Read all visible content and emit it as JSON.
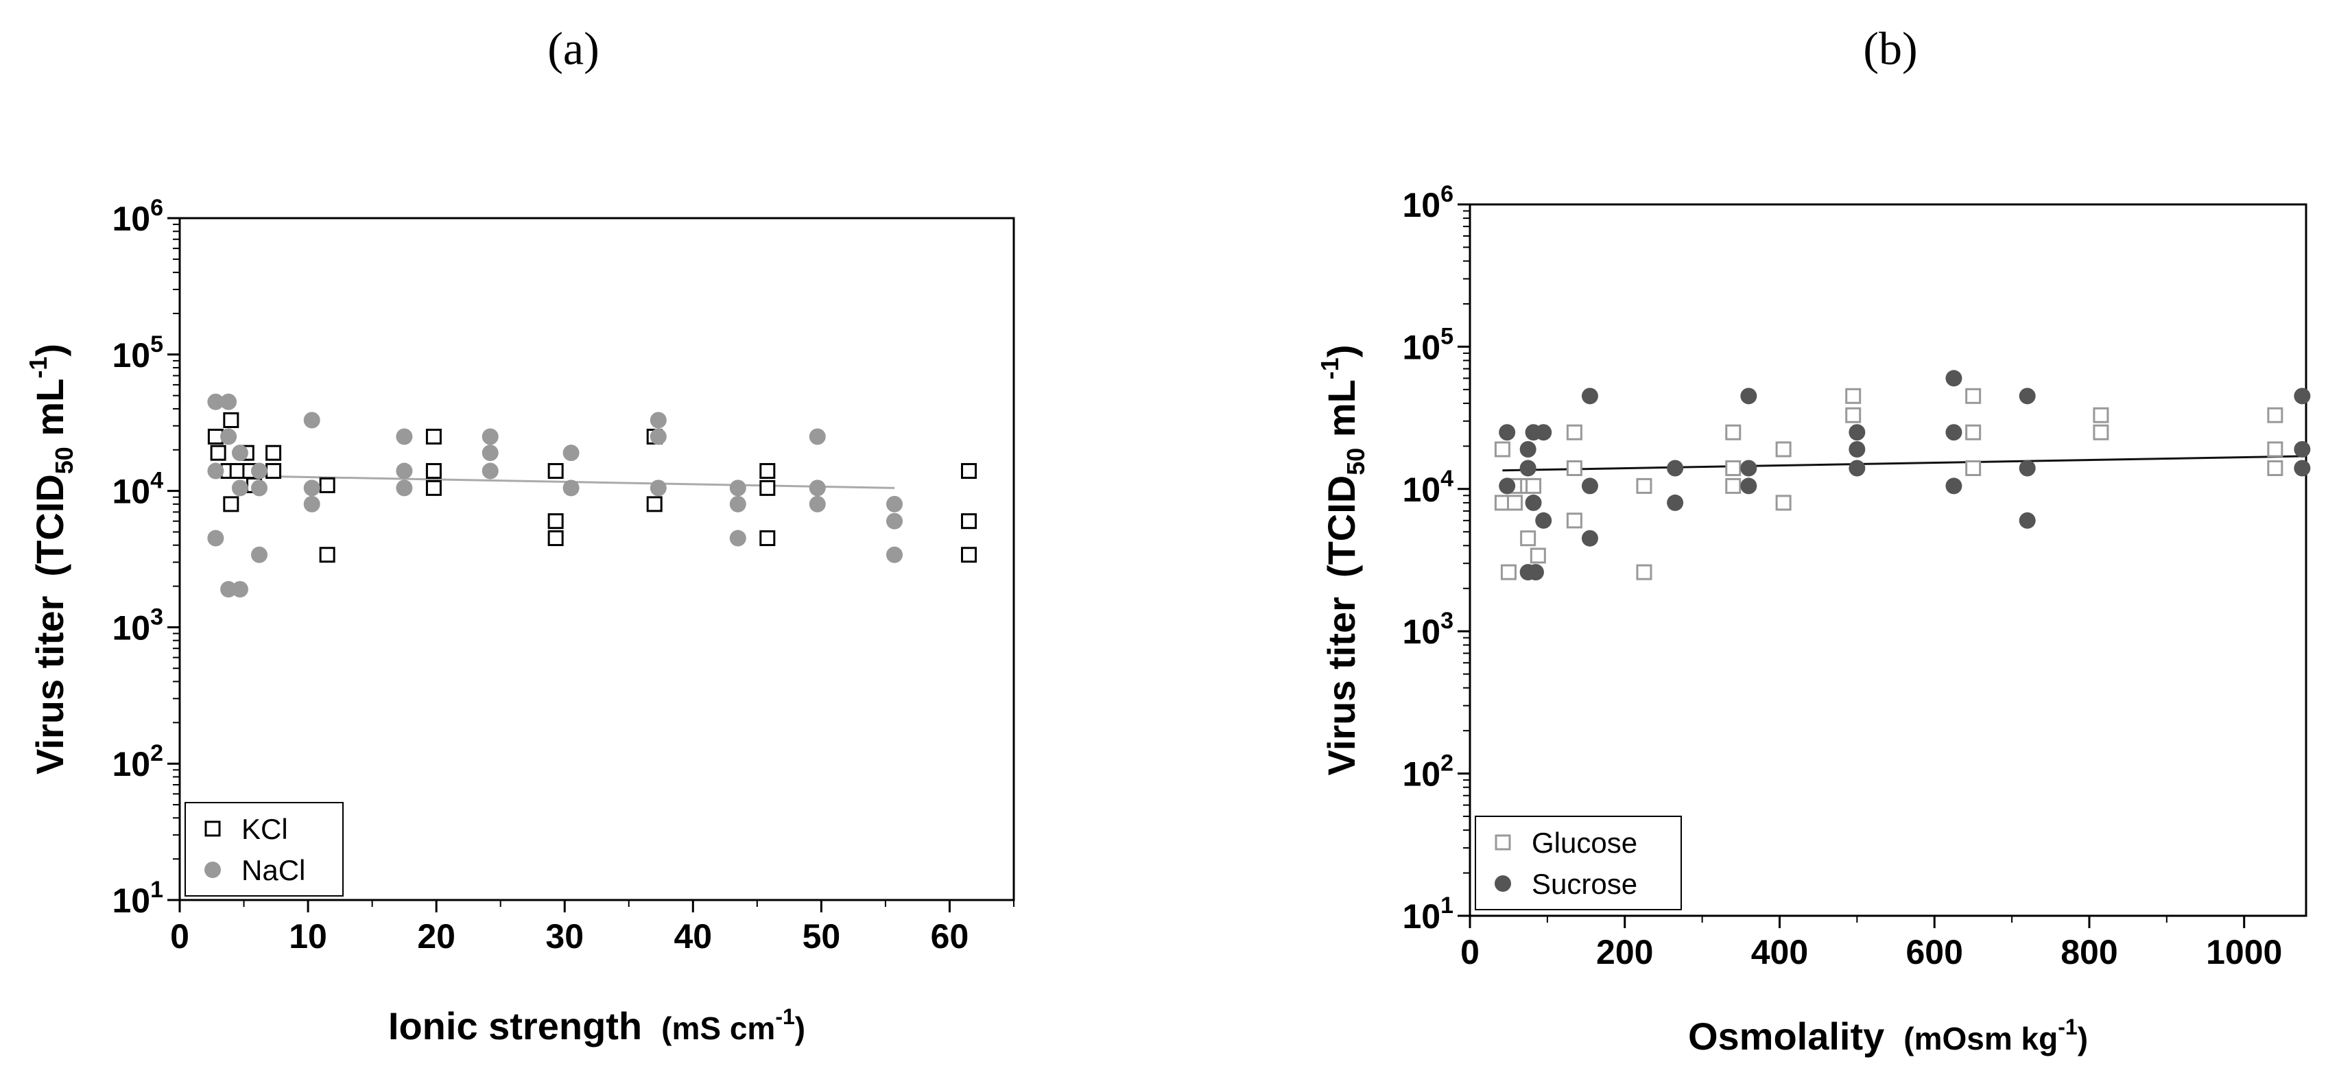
{
  "chart_data": [
    {
      "type": "scatter",
      "panel_label": "(a)",
      "panel_letter": "a",
      "xlabel": "Ionic strength",
      "xlabel_units": "(mS cm",
      "xlabel_units_sup": "-1",
      "xlabel_units_close": ")",
      "ylabel": "Virus titer",
      "ylabel_units_open": "(TCID",
      "ylabel_units_sub": "50",
      "ylabel_units_mid": " mL",
      "ylabel_units_sup": "-1",
      "ylabel_units_close": ")",
      "yscale": "log",
      "xlim": [
        0,
        65
      ],
      "ylim": [
        10,
        1000000
      ],
      "xticks": [
        0,
        10,
        20,
        30,
        40,
        50,
        60
      ],
      "xtick_labels": [
        "0",
        "10",
        "20",
        "30",
        "40",
        "50",
        "60"
      ],
      "yticks": [
        10,
        100,
        1000,
        10000,
        100000,
        1000000
      ],
      "ytick_base": "10",
      "ytick_exponents": [
        "1",
        "2",
        "3",
        "4",
        "5",
        "6"
      ],
      "legend_position": "bottom-left",
      "series": [
        {
          "name": "KCl",
          "marker": "open-square",
          "color": "#000000",
          "points": [
            [
              2.8,
              25000
            ],
            [
              3.0,
              19000
            ],
            [
              3.8,
              14000
            ],
            [
              4.0,
              33000
            ],
            [
              4.0,
              8000
            ],
            [
              4.5,
              14000
            ],
            [
              5.2,
              19000
            ],
            [
              5.5,
              14000
            ],
            [
              5.8,
              11000
            ],
            [
              7.3,
              19000
            ],
            [
              7.3,
              14000
            ],
            [
              11.5,
              11000
            ],
            [
              11.5,
              3400
            ],
            [
              19.8,
              25000
            ],
            [
              19.8,
              14000
            ],
            [
              19.8,
              10500
            ],
            [
              29.3,
              14000
            ],
            [
              29.3,
              6000
            ],
            [
              29.3,
              4500
            ],
            [
              37.0,
              25000
            ],
            [
              37.0,
              8000
            ],
            [
              45.8,
              14000
            ],
            [
              45.8,
              10500
            ],
            [
              45.8,
              4500
            ],
            [
              61.5,
              14000
            ],
            [
              61.5,
              6000
            ],
            [
              61.5,
              3400
            ]
          ]
        },
        {
          "name": "NaCl",
          "marker": "filled-circle",
          "color": "#999999",
          "points": [
            [
              2.8,
              45000
            ],
            [
              3.8,
              45000
            ],
            [
              3.8,
              25000
            ],
            [
              2.8,
              14000
            ],
            [
              2.8,
              4500
            ],
            [
              3.8,
              1900
            ],
            [
              4.7,
              1900
            ],
            [
              4.7,
              19000
            ],
            [
              4.7,
              10500
            ],
            [
              6.2,
              14000
            ],
            [
              6.2,
              10500
            ],
            [
              6.2,
              3400
            ],
            [
              10.3,
              33000
            ],
            [
              10.3,
              10500
            ],
            [
              10.3,
              8000
            ],
            [
              17.5,
              25000
            ],
            [
              17.5,
              14000
            ],
            [
              17.5,
              10500
            ],
            [
              24.2,
              25000
            ],
            [
              24.2,
              19000
            ],
            [
              24.2,
              14000
            ],
            [
              30.5,
              19000
            ],
            [
              30.5,
              10500
            ],
            [
              37.3,
              33000
            ],
            [
              37.3,
              25000
            ],
            [
              37.3,
              10500
            ],
            [
              43.5,
              10500
            ],
            [
              43.5,
              8000
            ],
            [
              43.5,
              4500
            ],
            [
              49.7,
              25000
            ],
            [
              49.7,
              10500
            ],
            [
              49.7,
              8000
            ],
            [
              55.7,
              8000
            ],
            [
              55.7,
              6000
            ],
            [
              55.7,
              3400
            ]
          ]
        }
      ],
      "trendline": {
        "color": "#aaaaaa",
        "from": [
          2.8,
          13000
        ],
        "to": [
          55.7,
          10500
        ]
      }
    },
    {
      "type": "scatter",
      "panel_label": "(b)",
      "panel_letter": "b",
      "xlabel": "Osmolality",
      "xlabel_units": "(mOsm kg",
      "xlabel_units_sup": "-1",
      "xlabel_units_close": ")",
      "ylabel": "Virus titer",
      "ylabel_units_open": "(TCID",
      "ylabel_units_sub": "50",
      "ylabel_units_mid": " mL",
      "ylabel_units_sup": "-1",
      "ylabel_units_close": ")",
      "yscale": "log",
      "xlim": [
        0,
        1080
      ],
      "ylim": [
        10,
        1000000
      ],
      "xticks": [
        0,
        200,
        400,
        600,
        800,
        1000
      ],
      "xtick_labels": [
        "0",
        "200",
        "400",
        "600",
        "800",
        "1000"
      ],
      "yticks": [
        10,
        100,
        1000,
        10000,
        100000,
        1000000
      ],
      "ytick_base": "10",
      "ytick_exponents": [
        "1",
        "2",
        "3",
        "4",
        "5",
        "6"
      ],
      "legend_position": "bottom-left",
      "series": [
        {
          "name": "Glucose",
          "marker": "open-square",
          "color": "#999999",
          "points": [
            [
              42,
              19000
            ],
            [
              42,
              8000
            ],
            [
              58,
              10500
            ],
            [
              58,
              8000
            ],
            [
              50,
              2600
            ],
            [
              75,
              10500
            ],
            [
              75,
              4500
            ],
            [
              82,
              10500
            ],
            [
              88,
              3400
            ],
            [
              135,
              25000
            ],
            [
              135,
              14000
            ],
            [
              135,
              6000
            ],
            [
              225,
              10500
            ],
            [
              225,
              2600
            ],
            [
              340,
              25000
            ],
            [
              340,
              14000
            ],
            [
              340,
              10500
            ],
            [
              405,
              19000
            ],
            [
              405,
              8000
            ],
            [
              495,
              45000
            ],
            [
              495,
              33000
            ],
            [
              650,
              45000
            ],
            [
              650,
              25000
            ],
            [
              650,
              14000
            ],
            [
              815,
              33000
            ],
            [
              815,
              25000
            ],
            [
              1040,
              33000
            ],
            [
              1040,
              19000
            ],
            [
              1040,
              14000
            ]
          ]
        },
        {
          "name": "Sucrose",
          "marker": "filled-circle",
          "color": "#555555",
          "points": [
            [
              48,
              25000
            ],
            [
              48,
              10500
            ],
            [
              75,
              19000
            ],
            [
              75,
              14000
            ],
            [
              75,
              2600
            ],
            [
              82,
              25000
            ],
            [
              82,
              8000
            ],
            [
              85,
              2600
            ],
            [
              95,
              25000
            ],
            [
              95,
              6000
            ],
            [
              155,
              45000
            ],
            [
              155,
              10500
            ],
            [
              155,
              4500
            ],
            [
              265,
              14000
            ],
            [
              265,
              8000
            ],
            [
              360,
              45000
            ],
            [
              360,
              14000
            ],
            [
              360,
              10500
            ],
            [
              500,
              25000
            ],
            [
              500,
              19000
            ],
            [
              500,
              14000
            ],
            [
              625,
              60000
            ],
            [
              625,
              25000
            ],
            [
              625,
              10500
            ],
            [
              720,
              45000
            ],
            [
              720,
              14000
            ],
            [
              720,
              6000
            ],
            [
              1075,
              45000
            ],
            [
              1075,
              19000
            ],
            [
              1075,
              14000
            ]
          ]
        }
      ],
      "trendline": {
        "color": "#111111",
        "from": [
          42,
          13500
        ],
        "to": [
          1075,
          17000
        ]
      }
    }
  ]
}
